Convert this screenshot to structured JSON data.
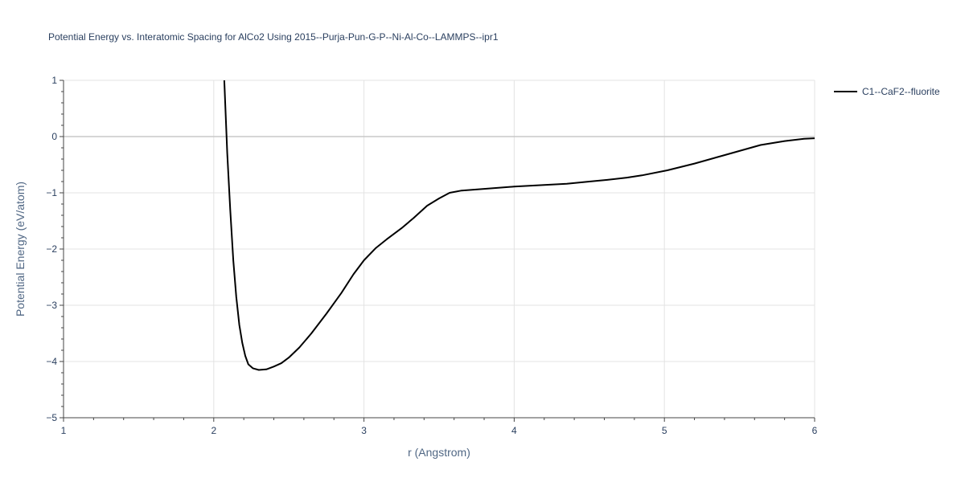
{
  "chart_data": {
    "type": "line",
    "title": "Potential Energy vs. Interatomic Spacing for AlCo2 Using 2015--Purja-Pun-G-P--Ni-Al-Co--LAMMPS--ipr1",
    "xlabel": "r (Angstrom)",
    "ylabel": "Potential Energy (eV/atom)",
    "xlim": [
      1,
      6
    ],
    "ylim": [
      -5,
      1
    ],
    "xticks": [
      1,
      2,
      3,
      4,
      5,
      6
    ],
    "yticks": [
      1,
      0,
      -1,
      -2,
      -3,
      -4,
      -5
    ],
    "ytick_labels": [
      "1",
      "0",
      "−1",
      "−2",
      "−3",
      "−4",
      "−5"
    ],
    "grid": true,
    "legend_position": "top-right",
    "series": [
      {
        "name": "C1--CaF2--fluorite",
        "color": "#000000",
        "x": [
          2.07,
          2.09,
          2.11,
          2.13,
          2.15,
          2.17,
          2.19,
          2.21,
          2.23,
          2.26,
          2.3,
          2.35,
          2.4,
          2.45,
          2.5,
          2.57,
          2.65,
          2.75,
          2.85,
          2.93,
          3.0,
          3.08,
          3.15,
          3.25,
          3.33,
          3.42,
          3.5,
          3.57,
          3.65,
          3.8,
          4.0,
          4.2,
          4.35,
          4.5,
          4.62,
          4.75,
          4.85,
          5.02,
          5.2,
          5.4,
          5.64,
          5.8,
          5.93,
          6.0
        ],
        "y": [
          1.0,
          -0.3,
          -1.3,
          -2.2,
          -2.85,
          -3.35,
          -3.67,
          -3.9,
          -4.05,
          -4.12,
          -4.15,
          -4.14,
          -4.09,
          -4.03,
          -3.93,
          -3.75,
          -3.5,
          -3.15,
          -2.78,
          -2.45,
          -2.2,
          -1.98,
          -1.83,
          -1.63,
          -1.45,
          -1.23,
          -1.1,
          -1.0,
          -0.96,
          -0.93,
          -0.89,
          -0.86,
          -0.84,
          -0.8,
          -0.77,
          -0.73,
          -0.69,
          -0.6,
          -0.48,
          -0.33,
          -0.15,
          -0.08,
          -0.04,
          -0.03
        ]
      }
    ]
  }
}
